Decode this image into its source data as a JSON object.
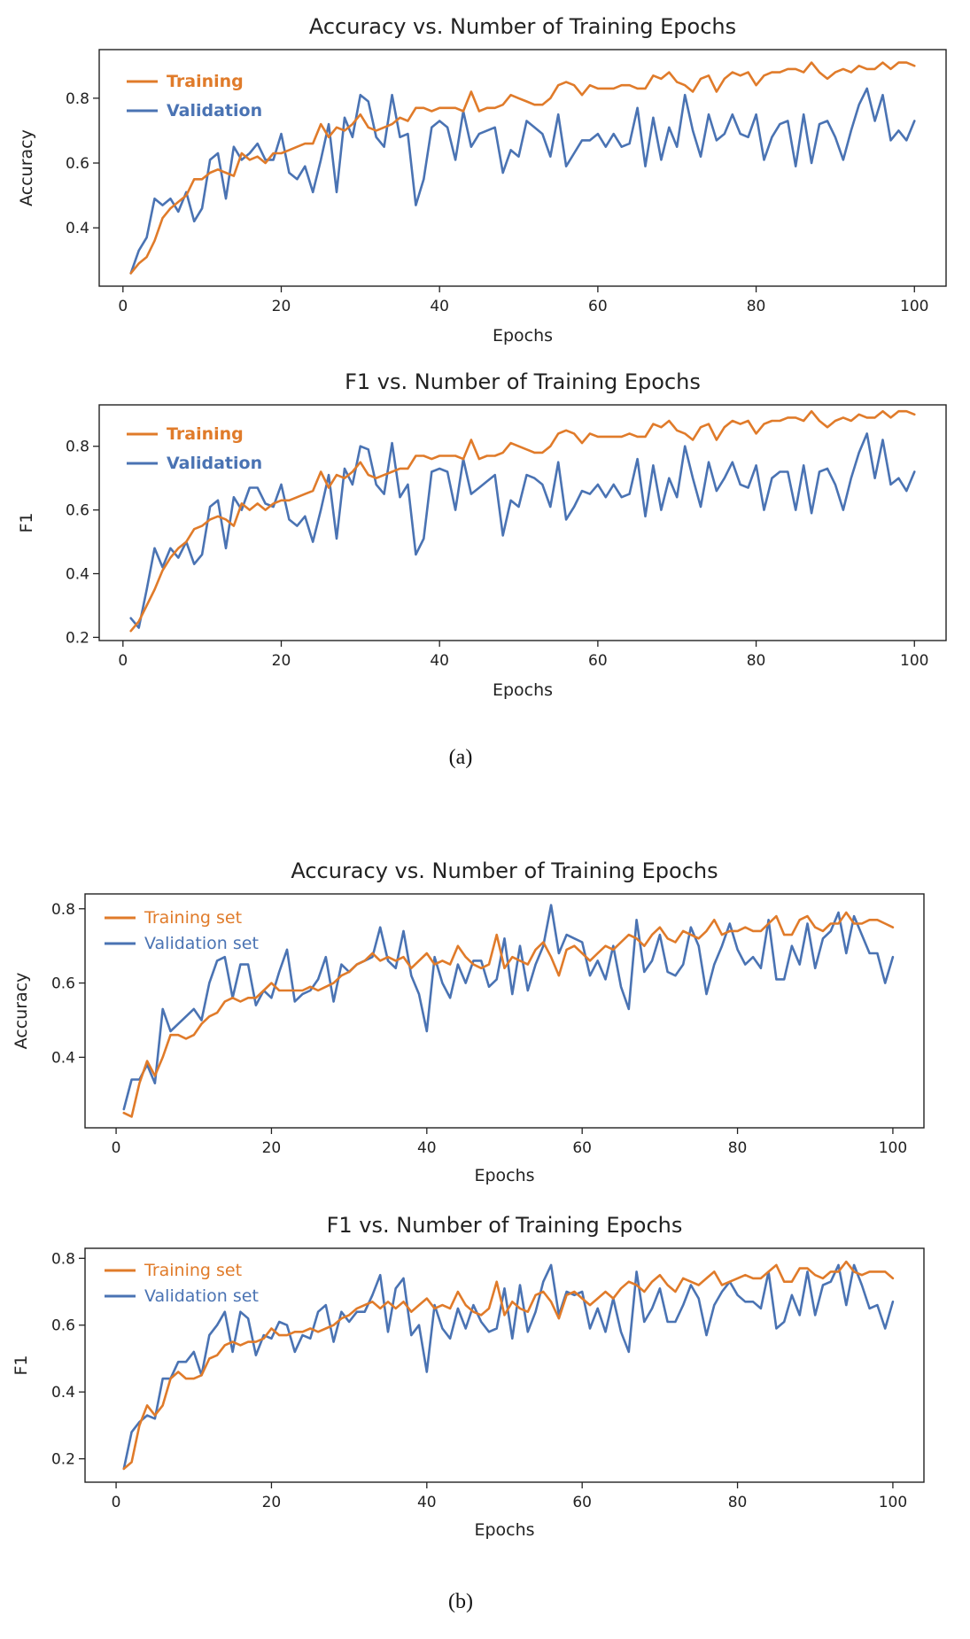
{
  "colors": {
    "training": "#e07b2a",
    "validation": "#4a73b3"
  },
  "chart_data": [
    {
      "type": "line",
      "title": "Accuracy vs. Number of Training Epochs",
      "xlabel": "Epochs",
      "ylabel": "Accuracy",
      "xlim": [
        -3,
        104
      ],
      "ylim": [
        0.22,
        0.95
      ],
      "xticks": [
        0,
        20,
        40,
        60,
        80,
        100
      ],
      "yticks": [
        0.4,
        0.6,
        0.8
      ],
      "ytick_labels": [
        "0.4",
        "0.6",
        "0.8"
      ],
      "legend_bold": true,
      "series": [
        {
          "name": "Training",
          "key": "training",
          "values": [
            0.26,
            0.29,
            0.31,
            0.36,
            0.43,
            0.46,
            0.48,
            0.5,
            0.55,
            0.55,
            0.57,
            0.58,
            0.57,
            0.56,
            0.63,
            0.61,
            0.62,
            0.6,
            0.63,
            0.63,
            0.64,
            0.65,
            0.66,
            0.66,
            0.72,
            0.68,
            0.71,
            0.7,
            0.72,
            0.75,
            0.71,
            0.7,
            0.71,
            0.72,
            0.74,
            0.73,
            0.77,
            0.77,
            0.76,
            0.77,
            0.77,
            0.77,
            0.76,
            0.82,
            0.76,
            0.77,
            0.77,
            0.78,
            0.81,
            0.8,
            0.79,
            0.78,
            0.78,
            0.8,
            0.84,
            0.85,
            0.84,
            0.81,
            0.84,
            0.83,
            0.83,
            0.83,
            0.84,
            0.84,
            0.83,
            0.83,
            0.87,
            0.86,
            0.88,
            0.85,
            0.84,
            0.82,
            0.86,
            0.87,
            0.82,
            0.86,
            0.88,
            0.87,
            0.88,
            0.84,
            0.87,
            0.88,
            0.88,
            0.89,
            0.89,
            0.88,
            0.91,
            0.88,
            0.86,
            0.88,
            0.89,
            0.88,
            0.9,
            0.89,
            0.89,
            0.91,
            0.89,
            0.91,
            0.91,
            0.9
          ]
        },
        {
          "name": "Validation",
          "key": "validation",
          "values": [
            0.26,
            0.33,
            0.37,
            0.49,
            0.47,
            0.49,
            0.45,
            0.51,
            0.42,
            0.46,
            0.61,
            0.63,
            0.49,
            0.65,
            0.61,
            0.63,
            0.66,
            0.61,
            0.61,
            0.69,
            0.57,
            0.55,
            0.59,
            0.51,
            0.61,
            0.72,
            0.51,
            0.74,
            0.68,
            0.81,
            0.79,
            0.68,
            0.65,
            0.81,
            0.68,
            0.69,
            0.47,
            0.55,
            0.71,
            0.73,
            0.71,
            0.61,
            0.76,
            0.65,
            0.69,
            0.7,
            0.71,
            0.57,
            0.64,
            0.62,
            0.73,
            0.71,
            0.69,
            0.62,
            0.75,
            0.59,
            0.63,
            0.67,
            0.67,
            0.69,
            0.65,
            0.69,
            0.65,
            0.66,
            0.77,
            0.59,
            0.74,
            0.61,
            0.71,
            0.65,
            0.81,
            0.7,
            0.62,
            0.75,
            0.67,
            0.69,
            0.75,
            0.69,
            0.68,
            0.75,
            0.61,
            0.68,
            0.72,
            0.73,
            0.59,
            0.75,
            0.6,
            0.72,
            0.73,
            0.68,
            0.61,
            0.7,
            0.78,
            0.83,
            0.73,
            0.81,
            0.67,
            0.7,
            0.67,
            0.73
          ]
        }
      ]
    },
    {
      "type": "line",
      "title": "F1 vs. Number of Training Epochs",
      "xlabel": "Epochs",
      "ylabel": "F1",
      "xlim": [
        -3,
        104
      ],
      "ylim": [
        0.19,
        0.93
      ],
      "xticks": [
        0,
        20,
        40,
        60,
        80,
        100
      ],
      "yticks": [
        0.2,
        0.4,
        0.6,
        0.8
      ],
      "ytick_labels": [
        "0.2",
        "0.4",
        "0.6",
        "0.8"
      ],
      "legend_bold": true,
      "series": [
        {
          "name": "Training",
          "key": "training",
          "values": [
            0.22,
            0.25,
            0.3,
            0.35,
            0.41,
            0.45,
            0.48,
            0.5,
            0.54,
            0.55,
            0.57,
            0.58,
            0.57,
            0.55,
            0.62,
            0.6,
            0.62,
            0.6,
            0.62,
            0.63,
            0.63,
            0.64,
            0.65,
            0.66,
            0.72,
            0.67,
            0.71,
            0.7,
            0.72,
            0.75,
            0.71,
            0.7,
            0.71,
            0.72,
            0.73,
            0.73,
            0.77,
            0.77,
            0.76,
            0.77,
            0.77,
            0.77,
            0.76,
            0.82,
            0.76,
            0.77,
            0.77,
            0.78,
            0.81,
            0.8,
            0.79,
            0.78,
            0.78,
            0.8,
            0.84,
            0.85,
            0.84,
            0.81,
            0.84,
            0.83,
            0.83,
            0.83,
            0.83,
            0.84,
            0.83,
            0.83,
            0.87,
            0.86,
            0.88,
            0.85,
            0.84,
            0.82,
            0.86,
            0.87,
            0.82,
            0.86,
            0.88,
            0.87,
            0.88,
            0.84,
            0.87,
            0.88,
            0.88,
            0.89,
            0.89,
            0.88,
            0.91,
            0.88,
            0.86,
            0.88,
            0.89,
            0.88,
            0.9,
            0.89,
            0.89,
            0.91,
            0.89,
            0.91,
            0.91,
            0.9
          ]
        },
        {
          "name": "Validation",
          "key": "validation",
          "values": [
            0.26,
            0.23,
            0.35,
            0.48,
            0.42,
            0.48,
            0.45,
            0.5,
            0.43,
            0.46,
            0.61,
            0.63,
            0.48,
            0.64,
            0.6,
            0.67,
            0.67,
            0.62,
            0.61,
            0.68,
            0.57,
            0.55,
            0.58,
            0.5,
            0.6,
            0.71,
            0.51,
            0.73,
            0.68,
            0.8,
            0.79,
            0.68,
            0.65,
            0.81,
            0.64,
            0.68,
            0.46,
            0.51,
            0.72,
            0.73,
            0.72,
            0.6,
            0.76,
            0.65,
            0.67,
            0.69,
            0.71,
            0.52,
            0.63,
            0.61,
            0.71,
            0.7,
            0.68,
            0.61,
            0.75,
            0.57,
            0.61,
            0.66,
            0.65,
            0.68,
            0.64,
            0.68,
            0.64,
            0.65,
            0.76,
            0.58,
            0.74,
            0.6,
            0.7,
            0.64,
            0.8,
            0.7,
            0.61,
            0.75,
            0.66,
            0.7,
            0.75,
            0.68,
            0.67,
            0.74,
            0.6,
            0.7,
            0.72,
            0.72,
            0.6,
            0.74,
            0.59,
            0.72,
            0.73,
            0.68,
            0.6,
            0.7,
            0.78,
            0.84,
            0.7,
            0.82,
            0.68,
            0.7,
            0.66,
            0.72
          ]
        }
      ]
    },
    {
      "type": "line",
      "title": "Accuracy vs. Number of Training Epochs",
      "xlabel": "Epochs",
      "ylabel": "Accuracy",
      "xlim": [
        -4,
        104
      ],
      "ylim": [
        0.21,
        0.84
      ],
      "xticks": [
        0,
        20,
        40,
        60,
        80,
        100
      ],
      "yticks": [
        0.4,
        0.6,
        0.8
      ],
      "ytick_labels": [
        "0.4",
        "0.6",
        "0.8"
      ],
      "legend_bold": false,
      "series": [
        {
          "name": "Training set",
          "key": "training",
          "values": [
            0.25,
            0.24,
            0.33,
            0.39,
            0.35,
            0.4,
            0.46,
            0.46,
            0.45,
            0.46,
            0.49,
            0.51,
            0.52,
            0.55,
            0.56,
            0.55,
            0.56,
            0.56,
            0.58,
            0.6,
            0.58,
            0.58,
            0.58,
            0.58,
            0.59,
            0.58,
            0.59,
            0.6,
            0.62,
            0.63,
            0.65,
            0.66,
            0.68,
            0.66,
            0.67,
            0.66,
            0.67,
            0.64,
            0.66,
            0.68,
            0.65,
            0.66,
            0.65,
            0.7,
            0.67,
            0.65,
            0.64,
            0.65,
            0.73,
            0.64,
            0.67,
            0.66,
            0.65,
            0.69,
            0.71,
            0.67,
            0.62,
            0.69,
            0.7,
            0.68,
            0.66,
            0.68,
            0.7,
            0.69,
            0.71,
            0.73,
            0.72,
            0.7,
            0.73,
            0.75,
            0.72,
            0.71,
            0.74,
            0.73,
            0.72,
            0.74,
            0.77,
            0.73,
            0.74,
            0.74,
            0.75,
            0.74,
            0.74,
            0.76,
            0.78,
            0.73,
            0.73,
            0.77,
            0.78,
            0.75,
            0.74,
            0.76,
            0.76,
            0.79,
            0.76,
            0.76,
            0.77,
            0.77,
            0.76,
            0.75
          ]
        },
        {
          "name": "Validation set",
          "key": "validation",
          "values": [
            0.26,
            0.34,
            0.34,
            0.38,
            0.33,
            0.53,
            0.47,
            0.49,
            0.51,
            0.53,
            0.5,
            0.6,
            0.66,
            0.67,
            0.56,
            0.65,
            0.65,
            0.54,
            0.58,
            0.56,
            0.63,
            0.69,
            0.55,
            0.57,
            0.58,
            0.61,
            0.67,
            0.55,
            0.65,
            0.63,
            0.65,
            0.66,
            0.67,
            0.75,
            0.66,
            0.64,
            0.74,
            0.62,
            0.57,
            0.47,
            0.67,
            0.6,
            0.56,
            0.65,
            0.6,
            0.66,
            0.66,
            0.59,
            0.61,
            0.72,
            0.57,
            0.7,
            0.58,
            0.65,
            0.7,
            0.81,
            0.68,
            0.73,
            0.72,
            0.71,
            0.62,
            0.66,
            0.61,
            0.7,
            0.59,
            0.53,
            0.77,
            0.63,
            0.66,
            0.73,
            0.63,
            0.62,
            0.65,
            0.75,
            0.7,
            0.57,
            0.65,
            0.7,
            0.76,
            0.69,
            0.65,
            0.67,
            0.64,
            0.77,
            0.61,
            0.61,
            0.7,
            0.65,
            0.76,
            0.64,
            0.72,
            0.74,
            0.79,
            0.68,
            0.78,
            0.73,
            0.68,
            0.68,
            0.6,
            0.67
          ]
        }
      ]
    },
    {
      "type": "line",
      "title": "F1 vs. Number of Training Epochs",
      "xlabel": "Epochs",
      "ylabel": "F1",
      "xlim": [
        -4,
        104
      ],
      "ylim": [
        0.13,
        0.83
      ],
      "xticks": [
        0,
        20,
        40,
        60,
        80,
        100
      ],
      "yticks": [
        0.2,
        0.4,
        0.6,
        0.8
      ],
      "ytick_labels": [
        "0.2",
        "0.4",
        "0.6",
        "0.8"
      ],
      "legend_bold": false,
      "series": [
        {
          "name": "Training set",
          "key": "training",
          "values": [
            0.17,
            0.19,
            0.3,
            0.36,
            0.33,
            0.36,
            0.44,
            0.46,
            0.44,
            0.44,
            0.45,
            0.5,
            0.51,
            0.54,
            0.55,
            0.54,
            0.55,
            0.55,
            0.56,
            0.59,
            0.57,
            0.57,
            0.58,
            0.58,
            0.59,
            0.58,
            0.59,
            0.6,
            0.62,
            0.63,
            0.65,
            0.66,
            0.67,
            0.65,
            0.67,
            0.65,
            0.67,
            0.64,
            0.66,
            0.68,
            0.65,
            0.66,
            0.65,
            0.7,
            0.66,
            0.64,
            0.63,
            0.65,
            0.73,
            0.63,
            0.67,
            0.65,
            0.64,
            0.69,
            0.7,
            0.67,
            0.62,
            0.69,
            0.7,
            0.68,
            0.66,
            0.68,
            0.7,
            0.68,
            0.71,
            0.73,
            0.72,
            0.7,
            0.73,
            0.75,
            0.72,
            0.7,
            0.74,
            0.73,
            0.72,
            0.74,
            0.76,
            0.72,
            0.73,
            0.74,
            0.75,
            0.74,
            0.74,
            0.76,
            0.78,
            0.73,
            0.73,
            0.77,
            0.77,
            0.75,
            0.74,
            0.76,
            0.76,
            0.79,
            0.76,
            0.75,
            0.76,
            0.76,
            0.76,
            0.74
          ]
        },
        {
          "name": "Validation set",
          "key": "validation",
          "values": [
            0.17,
            0.28,
            0.31,
            0.33,
            0.32,
            0.44,
            0.44,
            0.49,
            0.49,
            0.52,
            0.45,
            0.57,
            0.6,
            0.64,
            0.52,
            0.64,
            0.62,
            0.51,
            0.57,
            0.56,
            0.61,
            0.6,
            0.52,
            0.57,
            0.56,
            0.64,
            0.66,
            0.55,
            0.64,
            0.61,
            0.64,
            0.64,
            0.69,
            0.75,
            0.58,
            0.71,
            0.74,
            0.57,
            0.6,
            0.46,
            0.66,
            0.59,
            0.56,
            0.65,
            0.59,
            0.66,
            0.61,
            0.58,
            0.59,
            0.71,
            0.56,
            0.72,
            0.58,
            0.64,
            0.73,
            0.78,
            0.63,
            0.7,
            0.69,
            0.7,
            0.59,
            0.65,
            0.58,
            0.68,
            0.58,
            0.52,
            0.76,
            0.61,
            0.65,
            0.71,
            0.61,
            0.61,
            0.66,
            0.72,
            0.68,
            0.57,
            0.66,
            0.7,
            0.73,
            0.69,
            0.67,
            0.67,
            0.65,
            0.76,
            0.59,
            0.61,
            0.69,
            0.63,
            0.76,
            0.63,
            0.72,
            0.73,
            0.78,
            0.66,
            0.78,
            0.72,
            0.65,
            0.66,
            0.59,
            0.67
          ]
        }
      ]
    }
  ],
  "captions": {
    "a": "(a)",
    "b": "(b)"
  }
}
